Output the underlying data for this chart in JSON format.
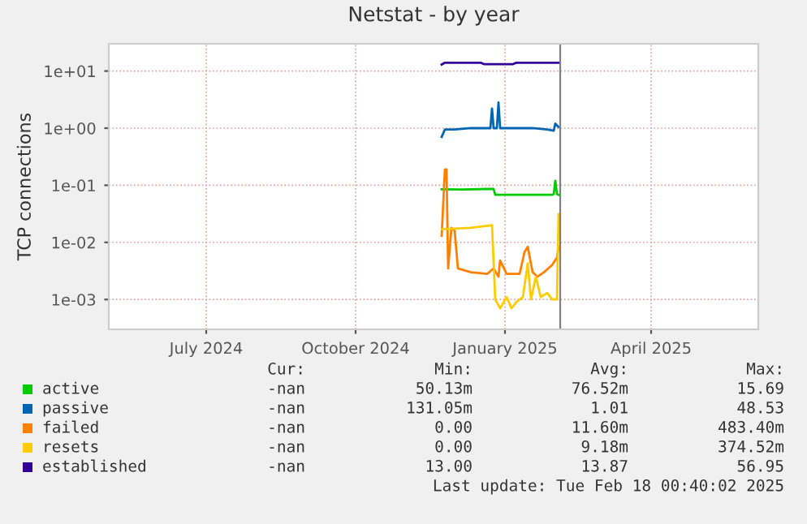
{
  "chart_data": {
    "type": "line",
    "title": "Netstat - by year",
    "ylabel": "TCP connections",
    "log": "y",
    "ylim": [
      0.0003,
      30
    ],
    "yticks": [
      {
        "value": 0.001,
        "label": "1e-03"
      },
      {
        "value": 0.01,
        "label": "1e-02"
      },
      {
        "value": 0.1,
        "label": "1e-01"
      },
      {
        "value": 1,
        "label": "1e+00"
      },
      {
        "value": 10,
        "label": "1e+01"
      }
    ],
    "xlim": [
      "2024-05-16",
      "2025-06-20"
    ],
    "xticks": [
      {
        "value": "2024-07-15",
        "label": "July 2024"
      },
      {
        "value": "2024-10-15",
        "label": "October 2024"
      },
      {
        "value": "2025-01-15",
        "label": "January 2025"
      },
      {
        "value": "2025-04-15",
        "label": "April 2025"
      }
    ],
    "grid": true,
    "legend": "bottom",
    "marker": "none",
    "line_style": "solid",
    "ref_lines": [
      {
        "axis": "x",
        "value": "2025-02-18",
        "color": "#808080"
      }
    ],
    "series": [
      {
        "name": "active",
        "color": "#00cc00",
        "x": [
          "2024-12-07",
          "2024-12-20",
          "2025-01-04",
          "2025-01-08",
          "2025-01-09",
          "2025-01-20",
          "2025-02-01",
          "2025-02-13",
          "2025-02-14",
          "2025-02-15",
          "2025-02-16",
          "2025-02-17"
        ],
        "values": [
          0.085,
          0.084,
          0.086,
          0.086,
          0.068,
          0.068,
          0.068,
          0.068,
          0.07,
          0.12,
          0.07,
          0.068
        ]
      },
      {
        "name": "passive",
        "color": "#0066b3",
        "x": [
          "2024-12-07",
          "2024-12-09",
          "2024-12-15",
          "2024-12-25",
          "2025-01-06",
          "2025-01-07",
          "2025-01-08",
          "2025-01-10",
          "2025-01-11",
          "2025-01-12",
          "2025-01-20",
          "2025-02-01",
          "2025-02-10",
          "2025-02-14",
          "2025-02-15",
          "2025-02-17"
        ],
        "values": [
          0.7,
          0.95,
          0.95,
          1.0,
          1.0,
          2.2,
          1.0,
          1.0,
          2.8,
          1.0,
          1.0,
          1.0,
          0.95,
          0.9,
          1.2,
          1.05
        ]
      },
      {
        "name": "failed",
        "color": "#ff8000",
        "x": [
          "2024-12-07",
          "2024-12-09",
          "2024-12-10",
          "2024-12-11",
          "2024-12-13",
          "2024-12-15",
          "2024-12-17",
          "2024-12-25",
          "2025-01-04",
          "2025-01-08",
          "2025-01-11",
          "2025-01-12",
          "2025-01-16",
          "2025-01-24",
          "2025-01-27",
          "2025-01-29",
          "2025-02-01",
          "2025-02-04",
          "2025-02-08",
          "2025-02-13",
          "2025-02-16",
          "2025-02-17"
        ],
        "values": [
          0.013,
          0.19,
          0.19,
          0.0035,
          0.018,
          0.016,
          0.0035,
          0.003,
          0.0028,
          0.0035,
          0.0025,
          0.0048,
          0.0028,
          0.0028,
          0.0067,
          0.0084,
          0.003,
          0.0025,
          0.003,
          0.004,
          0.0054,
          0.0084
        ]
      },
      {
        "name": "resets",
        "color": "#ffcc00",
        "x": [
          "2024-12-07",
          "2024-12-25",
          "2025-01-07",
          "2025-01-09",
          "2025-01-12",
          "2025-01-16",
          "2025-01-19",
          "2025-01-22",
          "2025-01-26",
          "2025-01-29",
          "2025-01-31",
          "2025-02-03",
          "2025-02-06",
          "2025-02-10",
          "2025-02-13",
          "2025-02-16",
          "2025-02-17"
        ],
        "values": [
          0.017,
          0.018,
          0.02,
          0.001,
          0.0007,
          0.0011,
          0.0007,
          0.0009,
          0.0011,
          0.0043,
          0.001,
          0.0025,
          0.0011,
          0.0013,
          0.001,
          0.001,
          0.031
        ]
      },
      {
        "name": "established",
        "color": "#330099",
        "x": [
          "2024-12-07",
          "2024-12-09",
          "2024-12-31",
          "2025-01-02",
          "2025-01-20",
          "2025-01-22",
          "2025-02-17"
        ],
        "values": [
          13.0,
          14.0,
          14.0,
          13.2,
          13.2,
          14.0,
          14.0
        ]
      }
    ],
    "annotations": [
      "Cur:",
      "Min:",
      "Avg:",
      "Max:",
      "-nan",
      "50.13m",
      "76.52m",
      "15.69",
      "-nan",
      "131.05m",
      "1.01",
      "48.53",
      "-nan",
      "0.00",
      "11.60m",
      "483.40m",
      "-nan",
      "0.00",
      "9.18m",
      "374.52m",
      "-nan",
      "13.00",
      "13.87",
      "56.95",
      "Last update: Tue Feb 18 00:40:02 2025"
    ]
  }
}
